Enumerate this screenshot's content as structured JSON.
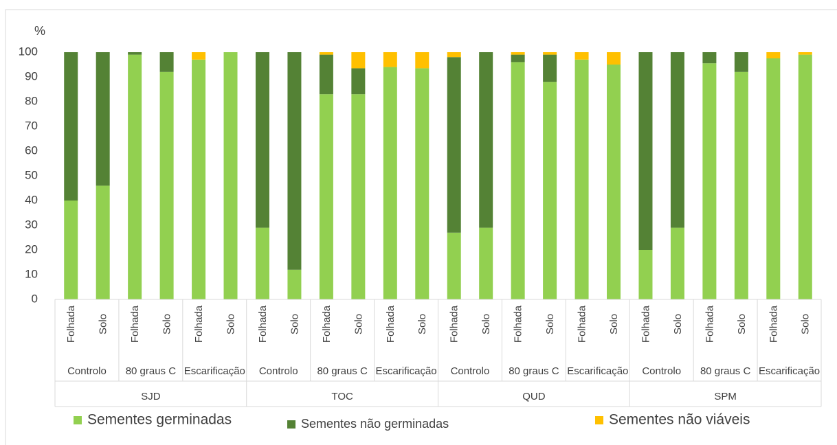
{
  "chart_data": {
    "type": "stacked_bar",
    "y_axis_label": "%",
    "categories": [
      "Folhada",
      "Solo",
      "Folhada",
      "Solo",
      "Folhada",
      "Solo",
      "Folhada",
      "Solo",
      "Folhada",
      "Solo",
      "Folhada",
      "Solo",
      "Folhada",
      "Solo",
      "Folhada",
      "Solo",
      "Folhada",
      "Solo",
      "Folhada",
      "Solo",
      "Folhada",
      "Solo",
      "Folhada",
      "Solo"
    ],
    "subgroups": [
      "Controlo",
      "80 graus C",
      "Escarificação",
      "Controlo",
      "80 graus C",
      "Escarificação",
      "Controlo",
      "80 graus C",
      "Escarificação",
      "Controlo",
      "80 graus C",
      "Escarificação"
    ],
    "groups": [
      "SJD",
      "TOC",
      "QUD",
      "SPM"
    ],
    "series": [
      {
        "name": "Sementes germinadas",
        "color": "#92d050",
        "values": [
          40,
          46,
          99,
          92,
          97,
          100,
          29,
          12,
          83,
          83,
          94,
          93.5,
          27,
          29,
          96,
          88,
          97,
          95,
          20,
          29,
          95.5,
          92,
          97.5,
          99
        ]
      },
      {
        "name": "Sementes não germinadas",
        "color": "#548235",
        "values": [
          60,
          54,
          1,
          8,
          0,
          0,
          71,
          88,
          16,
          10.5,
          0,
          0,
          71,
          71,
          3,
          11,
          0,
          0,
          80,
          71,
          4.5,
          8,
          0,
          0
        ]
      },
      {
        "name": "Sementes não viáveis",
        "color": "#ffc000",
        "values": [
          0,
          0,
          0,
          0,
          3,
          0,
          0,
          0,
          1,
          6.5,
          6,
          6.5,
          2,
          0,
          1,
          1,
          3,
          5,
          0,
          0,
          0,
          0,
          2.5,
          1
        ]
      }
    ],
    "ylim": [
      0,
      100
    ],
    "yticks": [
      0,
      10,
      20,
      30,
      40,
      50,
      60,
      70,
      80,
      90,
      100
    ],
    "grid": false,
    "legend": "bottom"
  }
}
